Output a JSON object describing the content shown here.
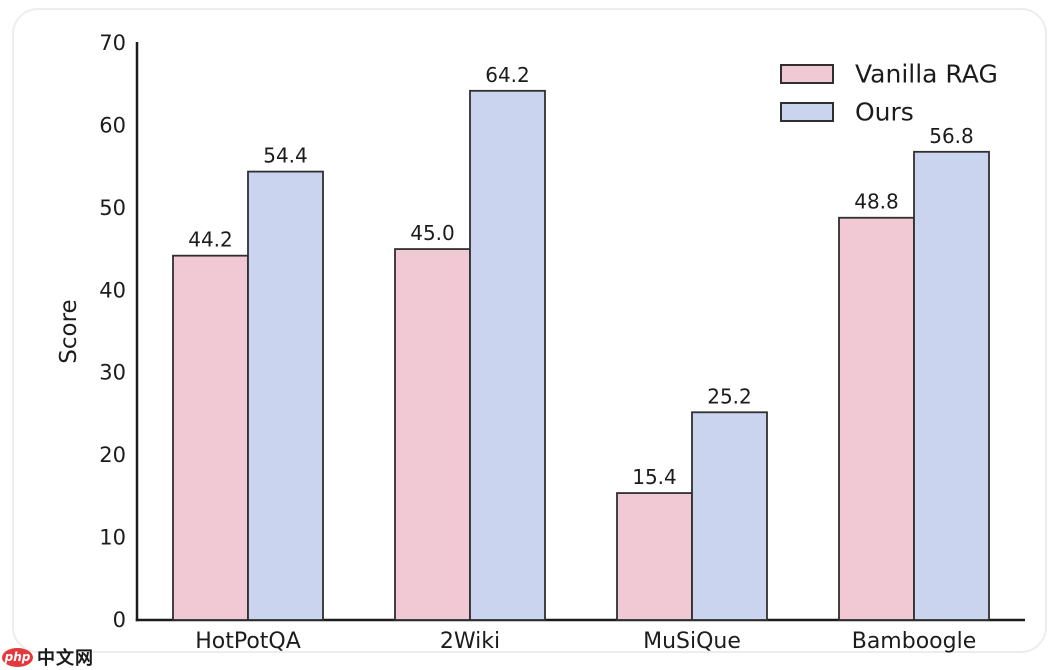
{
  "watermark": {
    "logo_text": "php",
    "site_text": "中文网",
    "logo_color": "#e4393c"
  },
  "chart_data": {
    "type": "bar",
    "categories": [
      "HotPotQA",
      "2Wiki",
      "MuSiQue",
      "Bamboogle"
    ],
    "series": [
      {
        "name": "Vanilla RAG",
        "color": "#f0c9d5",
        "values": [
          44.2,
          45.0,
          15.4,
          48.8
        ]
      },
      {
        "name": "Ours",
        "color": "#cbd4ee",
        "values": [
          54.4,
          64.2,
          25.2,
          56.8
        ]
      }
    ],
    "title": "",
    "xlabel": "",
    "ylabel": "Score",
    "ylim": [
      0,
      70
    ],
    "yticks": [
      0,
      10,
      20,
      30,
      40,
      50,
      60,
      70
    ],
    "value_label_decimals": 1,
    "grid": false,
    "legend_position": "upper right",
    "bar_edge_color": "#2f2f2f",
    "text_color": "#1c1c1c"
  }
}
